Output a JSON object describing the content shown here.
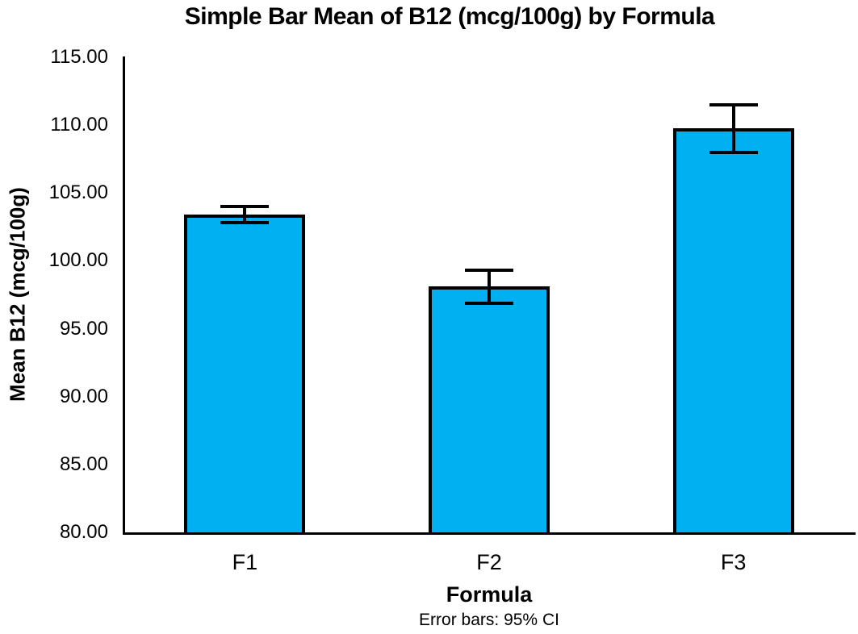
{
  "chart_data": {
    "type": "bar",
    "title": "Simple Bar Mean of B12 (mcg/100g) by Formula",
    "xlabel": "Formula",
    "ylabel": "Mean B12 (mcg/100g)",
    "footnote": "Error bars: 95% CI",
    "categories": [
      "F1",
      "F2",
      "F3"
    ],
    "values": [
      103.4,
      98.1,
      109.8
    ],
    "error_bars": {
      "kind": "95% CI",
      "lower": [
        102.8,
        96.9,
        108.0
      ],
      "upper": [
        104.0,
        99.3,
        111.5
      ]
    },
    "ylim": [
      80,
      115
    ],
    "ytick_step": 5,
    "ytick_labels": [
      "80.00",
      "85.00",
      "90.00",
      "95.00",
      "100.00",
      "105.00",
      "110.00",
      "115.00"
    ],
    "grid": false,
    "legend": "none",
    "bar_color": "#00B0F0",
    "bar_border_color": "#000000",
    "axis_color": "#000000",
    "text_color": "#000000",
    "background_color": "#FFFFFF"
  }
}
